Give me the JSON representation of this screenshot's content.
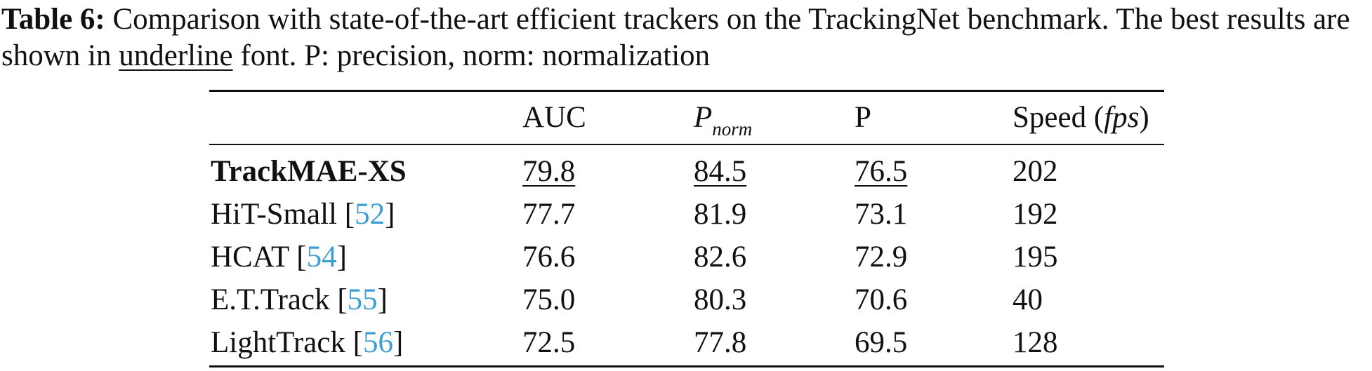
{
  "caption": {
    "label": "Table 6:",
    "text_1": " Comparison with state-of-the-art efficient trackers on the TrackingNet benchmark. The best results are shown in ",
    "underline_word": "underline",
    "text_2": " font. P: precision, norm: normalization"
  },
  "table": {
    "headers": {
      "auc": "AUC",
      "pnorm_main": "P",
      "pnorm_sub": "norm",
      "p": "P",
      "speed_prefix": "Speed (",
      "speed_unit": "fps",
      "speed_suffix": ")"
    },
    "rows": [
      {
        "name": "TrackMAE-XS",
        "ref": "",
        "auc": "79.8",
        "pnorm": "84.5",
        "p": "76.5",
        "speed": "202"
      },
      {
        "name": "HiT-Small ",
        "ref": "52",
        "auc": "77.7",
        "pnorm": "81.9",
        "p": "73.1",
        "speed": "192"
      },
      {
        "name": "HCAT ",
        "ref": "54",
        "auc": "76.6",
        "pnorm": "82.6",
        "p": "72.9",
        "speed": "195"
      },
      {
        "name": "E.T.Track ",
        "ref": "55",
        "auc": "75.0",
        "pnorm": "80.3",
        "p": "70.6",
        "speed": "40"
      },
      {
        "name": "LightTrack ",
        "ref": "56",
        "auc": "72.5",
        "pnorm": "77.8",
        "p": "69.5",
        "speed": "128"
      }
    ]
  },
  "colors": {
    "link": "#3b9ed4",
    "text": "#111111"
  }
}
